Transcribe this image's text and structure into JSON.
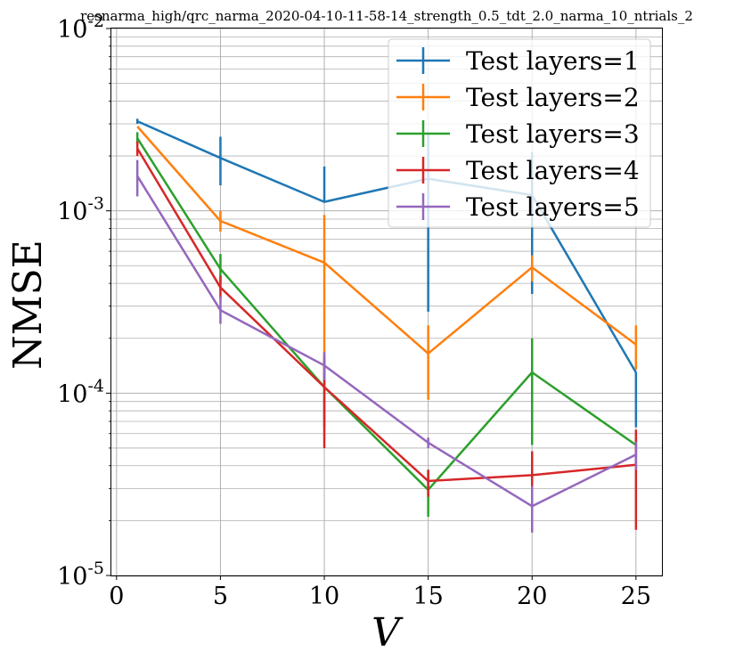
{
  "chart_data": {
    "type": "line",
    "title": "resnarma_high/qrc_narma_2020-04-10-11-58-14_strength_0.5_tdt_2.0_narma_10_ntrials_2",
    "xlabel": "V",
    "ylabel": "NMSE",
    "xlim": [
      -0.25,
      26.25
    ],
    "ylim": [
      1e-05,
      0.01
    ],
    "yscale": "log",
    "grid": "major and minor",
    "legend_position": "top-right",
    "x_ticks": [
      0,
      5,
      10,
      15,
      20,
      25
    ],
    "x_tick_labels": [
      "0",
      "5",
      "10",
      "15",
      "20",
      "25"
    ],
    "y_ticks": [
      {
        "value": 1e-05,
        "base": "10",
        "exp": "-5"
      },
      {
        "value": 0.0001,
        "base": "10",
        "exp": "-4"
      },
      {
        "value": 0.001,
        "base": "10",
        "exp": "-3"
      },
      {
        "value": 0.01,
        "base": "10",
        "exp": "-2"
      }
    ],
    "x": [
      1,
      5,
      10,
      15,
      20,
      25
    ],
    "series": [
      {
        "name": "Test layers=1",
        "color": "#1f77b4",
        "values": [
          0.0031,
          0.00195,
          0.00112,
          0.0015,
          0.00122,
          0.00013
        ],
        "err_low": [
          0.003,
          0.00138,
          0.00112,
          0.00028,
          0.00035,
          6.5e-05
        ],
        "err_high": [
          0.0032,
          0.00255,
          0.00175,
          0.0027,
          0.0021,
          0.00013
        ]
      },
      {
        "name": "Test layers=2",
        "color": "#ff7f0e",
        "values": [
          0.0029,
          0.00088,
          0.00052,
          0.000165,
          0.00049,
          0.000185
        ],
        "err_low": [
          0.0029,
          0.00077,
          0.00015,
          9.2e-05,
          0.00041,
          0.000135
        ],
        "err_high": [
          0.0029,
          0.001,
          0.00095,
          0.000235,
          0.00057,
          0.000235
        ]
      },
      {
        "name": "Test layers=3",
        "color": "#2ca02c",
        "values": [
          0.0025,
          0.00048,
          0.000108,
          2.95e-05,
          0.00013,
          5.2e-05
        ],
        "err_low": [
          0.0023,
          0.0004,
          6.5e-05,
          2.1e-05,
          5.2e-05,
          4.7e-05
        ],
        "err_high": [
          0.0027,
          0.00058,
          0.00015,
          3.8e-05,
          0.0002,
          5.7e-05
        ]
      },
      {
        "name": "Test layers=4",
        "color": "#d62728",
        "values": [
          0.0022,
          0.00038,
          0.000108,
          3.3e-05,
          3.55e-05,
          4.05e-05
        ],
        "err_low": [
          0.002,
          0.00033,
          5e-05,
          2.7e-05,
          2.6e-05,
          1.78e-05
        ],
        "err_high": [
          0.0024,
          0.00044,
          0.00016,
          3.8e-05,
          4.8e-05,
          6.3e-05
        ]
      },
      {
        "name": "Test layers=5",
        "color": "#9467bd",
        "values": [
          0.00155,
          0.000285,
          0.000142,
          5.35e-05,
          2.4e-05,
          4.6e-05
        ],
        "err_low": [
          0.0012,
          0.00024,
          0.000118,
          5e-05,
          1.72e-05,
          3.8e-05
        ],
        "err_high": [
          0.0019,
          0.00034,
          0.000168,
          5.7e-05,
          3.1e-05,
          5.4e-05
        ]
      }
    ]
  }
}
